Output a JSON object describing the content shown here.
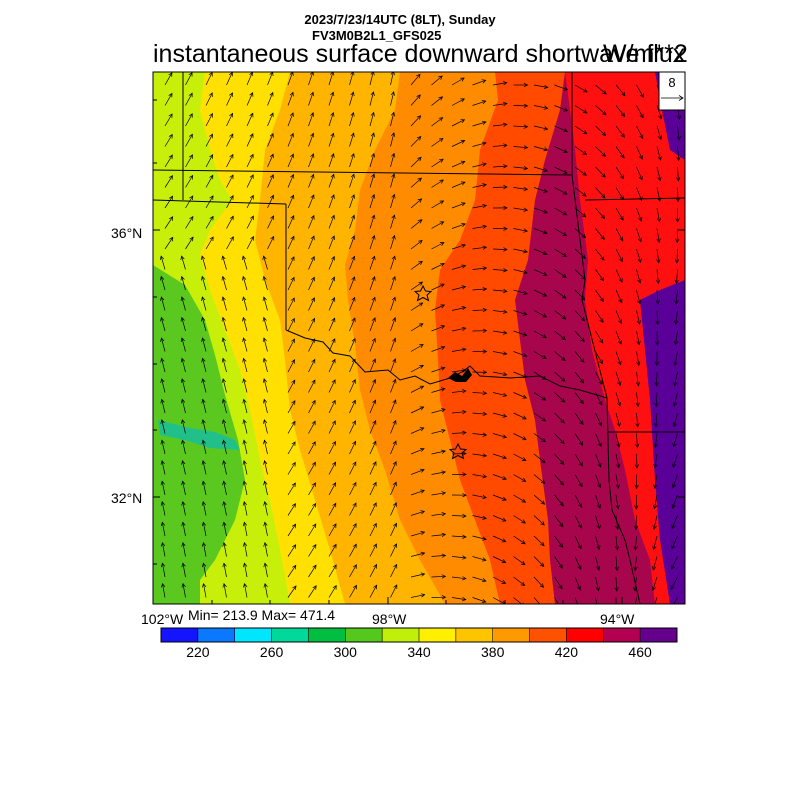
{
  "title": {
    "line1": "2023/7/23/14UTC (8LT), Sunday",
    "line2": "FV3M0B2L1_GFS025",
    "main": "instantaneous surface downward shortwave flux",
    "units": "W/m**2"
  },
  "vector_ref": {
    "value": "8"
  },
  "axes": {
    "lat_labels": [
      "36°N",
      "32°N"
    ],
    "lon_labels": [
      "102°W",
      "98°W",
      "94°W"
    ]
  },
  "stats": {
    "text": "Min= 213.9 Max= 471.4",
    "min": 213.9,
    "max": 471.4
  },
  "colorbar": {
    "colors": [
      "#1414ff",
      "#0a78ff",
      "#00e6ff",
      "#00d99a",
      "#00bf40",
      "#55c81e",
      "#c0ef0a",
      "#ffef00",
      "#ffc400",
      "#ff9900",
      "#ff5200",
      "#ff0000",
      "#b40050",
      "#64008c"
    ],
    "tick_labels": [
      "220",
      "260",
      "300",
      "340",
      "380",
      "420",
      "460"
    ]
  },
  "map_colors": {
    "purple_dark": "#5a0099",
    "maroon": "#a8064c",
    "red": "#ff1010",
    "orange_red": "#ff4a00",
    "orange": "#ff8c00",
    "amber": "#ffb400",
    "yellow": "#ffe000",
    "yellow_green": "#c8ef0a",
    "green": "#5ac81e",
    "teal": "#21c08a"
  }
}
